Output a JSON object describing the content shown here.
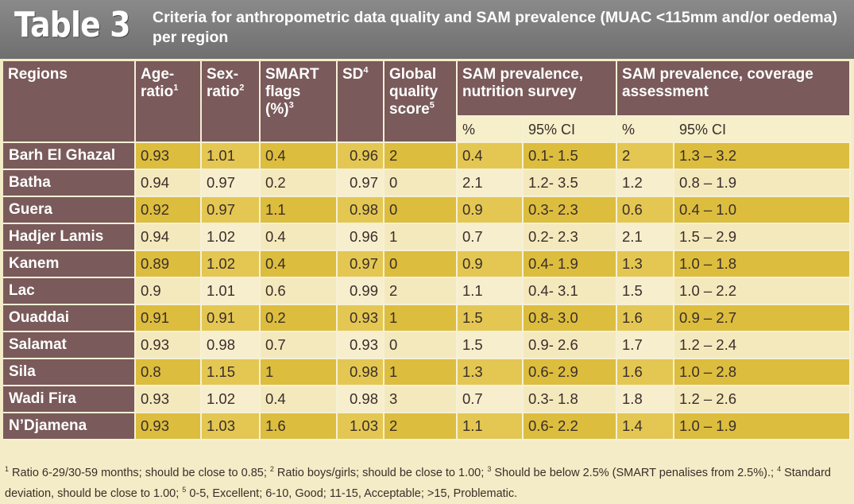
{
  "title": {
    "label": "Table 3",
    "text": "Criteria for anthropometric data quality and SAM prevalence (MUAC <115mm and/or oedema) per region"
  },
  "headers": {
    "regions": "Regions",
    "age_ratio": "Age-ratio",
    "age_ratio_sup": "1",
    "sex_ratio": "Sex-ratio",
    "sex_ratio_sup": "2",
    "smart_flags": "SMART flags (%)",
    "smart_flags_sup": "3",
    "sd": "SD",
    "sd_sup": "4",
    "global_quality": "Global quality score",
    "global_quality_sup": "5",
    "sam_survey": "SAM prevalence, nutrition survey",
    "sam_coverage": "SAM prevalence, coverage assessment",
    "pct": "%",
    "ci": "95% CI"
  },
  "rows": [
    {
      "region": "Barh El Ghazal",
      "age": "0.93",
      "sex": "1.01",
      "flags": "0.4",
      "sd": "0.96",
      "score": "2",
      "surv_pct": "0.4",
      "surv_ci": "0.1- 1.5",
      "cov_pct": "2",
      "cov_ci": "1.3 – 3.2"
    },
    {
      "region": "Batha",
      "age": "0.94",
      "sex": "0.97",
      "flags": "0.2",
      "sd": "0.97",
      "score": "0",
      "surv_pct": "2.1",
      "surv_ci": "1.2- 3.5",
      "cov_pct": "1.2",
      "cov_ci": "0.8 – 1.9"
    },
    {
      "region": "Guera",
      "age": "0.92",
      "sex": "0.97",
      "flags": "1.1",
      "sd": "0.98",
      "score": "0",
      "surv_pct": "0.9",
      "surv_ci": "0.3- 2.3",
      "cov_pct": "0.6",
      "cov_ci": "0.4 – 1.0"
    },
    {
      "region": "Hadjer Lamis",
      "age": "0.94",
      "sex": "1.02",
      "flags": "0.4",
      "sd": "0.96",
      "score": "1",
      "surv_pct": "0.7",
      "surv_ci": "0.2- 2.3",
      "cov_pct": "2.1",
      "cov_ci": "1.5 – 2.9"
    },
    {
      "region": "Kanem",
      "age": "0.89",
      "sex": "1.02",
      "flags": "0.4",
      "sd": "0.97",
      "score": "0",
      "surv_pct": "0.9",
      "surv_ci": "0.4- 1.9",
      "cov_pct": "1.3",
      "cov_ci": "1.0 – 1.8"
    },
    {
      "region": "Lac",
      "age": "0.9",
      "sex": "1.01",
      "flags": "0.6",
      "sd": "0.99",
      "score": "2",
      "surv_pct": "1.1",
      "surv_ci": "0.4- 3.1",
      "cov_pct": "1.5",
      "cov_ci": "1.0 – 2.2"
    },
    {
      "region": "Ouaddai",
      "age": "0.91",
      "sex": "0.91",
      "flags": "0.2",
      "sd": "0.93",
      "score": "1",
      "surv_pct": "1.5",
      "surv_ci": "0.8- 3.0",
      "cov_pct": "1.6",
      "cov_ci": "0.9 – 2.7"
    },
    {
      "region": "Salamat",
      "age": "0.93",
      "sex": "0.98",
      "flags": "0.7",
      "sd": "0.93",
      "score": "0",
      "surv_pct": "1.5",
      "surv_ci": "0.9- 2.6",
      "cov_pct": "1.7",
      "cov_ci": "1.2 – 2.4"
    },
    {
      "region": "Sila",
      "age": "0.8",
      "sex": "1.15",
      "flags": "1",
      "sd": "0.98",
      "score": "1",
      "surv_pct": "1.3",
      "surv_ci": "0.6- 2.9",
      "cov_pct": "1.6",
      "cov_ci": "1.0 – 2.8"
    },
    {
      "region": "Wadi Fira",
      "age": "0.93",
      "sex": "1.02",
      "flags": "0.4",
      "sd": "0.98",
      "score": "3",
      "surv_pct": "0.7",
      "surv_ci": "0.3- 1.8",
      "cov_pct": "1.8",
      "cov_ci": "1.2 – 2.6"
    },
    {
      "region": "N’Djamena",
      "age": "0.93",
      "sex": "1.03",
      "flags": "1.6",
      "sd": "1.03",
      "score": "2",
      "surv_pct": "1.1",
      "surv_ci": "0.6- 2.2",
      "cov_pct": "1.4",
      "cov_ci": "1.0 – 1.9"
    }
  ],
  "footnote": [
    {
      "sup": "1",
      "text": " Ratio 6-29/30-59 months; should be close to 0.85; "
    },
    {
      "sup": "2",
      "text": " Ratio boys/girls; should be close to 1.00; "
    },
    {
      "sup": "3",
      "text": " Should be below 2.5% (SMART penalises from 2.5%).; "
    },
    {
      "sup": "4",
      "text": " Standard deviation, should be close to 1.00; "
    },
    {
      "sup": "5",
      "text": " 0-5, Excellent; 6-10, Good; 11-15, Acceptable; >15, Problematic."
    }
  ]
}
